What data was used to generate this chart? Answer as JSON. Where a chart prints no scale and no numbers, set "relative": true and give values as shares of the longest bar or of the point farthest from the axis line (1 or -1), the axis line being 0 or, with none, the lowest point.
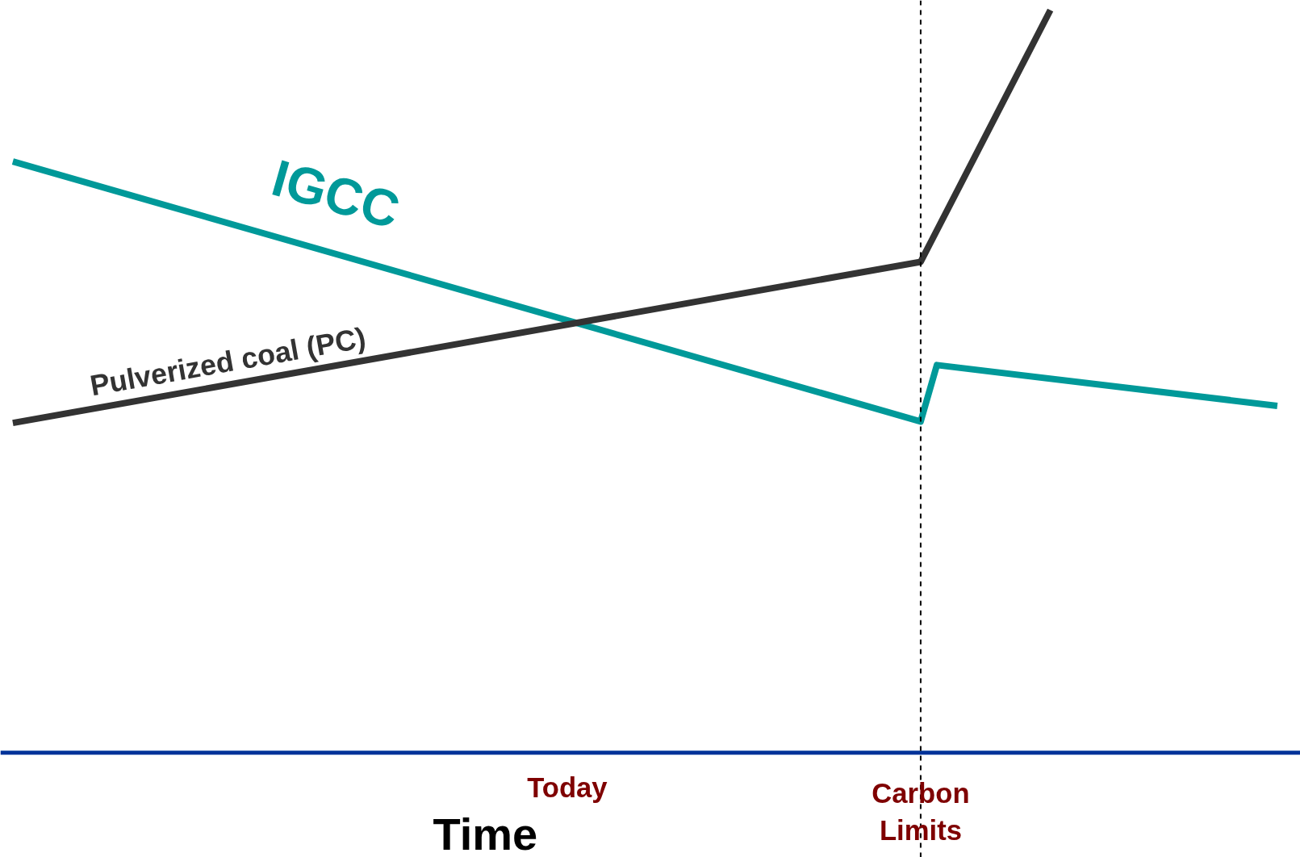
{
  "chart_data": {
    "type": "line",
    "relative": true,
    "xlabel": "Time",
    "categories": [
      null,
      null,
      null,
      null,
      null,
      null,
      null,
      null,
      null,
      null,
      null,
      null,
      null,
      null,
      null,
      null,
      null,
      null,
      null,
      null,
      null,
      null,
      null,
      null,
      null,
      null,
      null,
      null,
      null,
      null,
      null,
      null,
      null,
      null,
      null,
      null,
      null,
      null,
      null,
      null,
      null,
      null,
      null,
      null,
      null,
      null,
      null,
      null,
      null,
      null,
      null,
      null,
      null,
      null,
      null,
      null,
      null,
      null,
      null,
      null,
      null,
      null,
      null,
      null,
      null,
      null,
      null,
      null,
      null,
      null,
      null,
      null,
      null,
      null,
      null,
      null,
      null,
      null,
      null
    ],
    "series": [
      {
        "name": "IGCC",
        "color": "#009999",
        "values": [
          0.796,
          null,
          null,
          null,
          null,
          null,
          null,
          null,
          null,
          null,
          null,
          null,
          null,
          null,
          null,
          null,
          null,
          null,
          null,
          null,
          null,
          null,
          null,
          null,
          null,
          null,
          null,
          null,
          null,
          null,
          null,
          null,
          null,
          null,
          null,
          null,
          null,
          null,
          null,
          null,
          null,
          null,
          null,
          null,
          null,
          null,
          null,
          null,
          null,
          null,
          null,
          null,
          null,
          null,
          null,
          null,
          0.446,
          0.522,
          null,
          null,
          null,
          null,
          null,
          null,
          null,
          null,
          null,
          null,
          null,
          null,
          null,
          null,
          null,
          null,
          null,
          null,
          null,
          null,
          0.467
        ]
      },
      {
        "name": "Pulverized coal (PC)",
        "color": "#333333",
        "values": [
          0.444,
          null,
          null,
          null,
          null,
          null,
          null,
          null,
          null,
          null,
          null,
          null,
          null,
          null,
          null,
          null,
          null,
          null,
          null,
          null,
          null,
          null,
          null,
          null,
          null,
          null,
          null,
          null,
          null,
          null,
          null,
          null,
          null,
          null,
          null,
          null,
          null,
          null,
          null,
          null,
          null,
          null,
          null,
          null,
          null,
          null,
          null,
          null,
          null,
          null,
          null,
          null,
          null,
          null,
          null,
          null,
          0.661,
          null,
          null,
          null,
          null,
          null,
          null,
          null,
          1.0,
          null,
          null,
          null,
          null,
          null,
          null,
          null,
          null,
          null,
          null,
          null,
          null,
          null,
          null
        ]
      }
    ],
    "annotations": [
      "Today",
      "Carbon Limits"
    ],
    "grid": false,
    "legend": false,
    "tick_labels": false,
    "marker": "none",
    "line_style": "solid"
  }
}
